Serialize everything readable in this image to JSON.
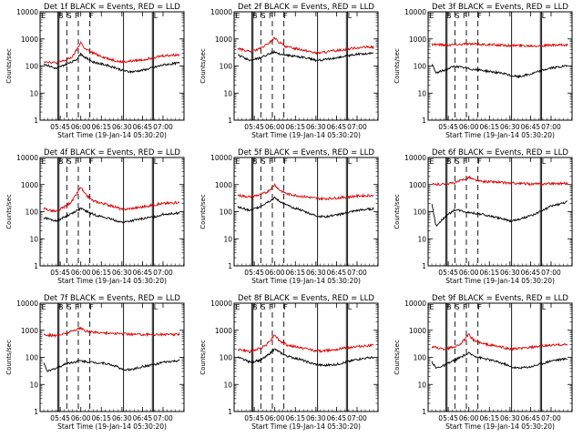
{
  "colors": {
    "events": "#000000",
    "lld": "#dd0000",
    "axes": "#000000"
  },
  "y_axis": {
    "label": "Counts/sec",
    "ticks": [
      "1",
      "10",
      "100",
      "1000",
      "10000"
    ],
    "ylim": [
      1,
      10000
    ],
    "scale": "log"
  },
  "x_axis": {
    "ticks": [
      "05:45",
      "06:00",
      "06:15",
      "06:30",
      "06:45",
      "07:00"
    ],
    "xlabel": "Start Time (19-Jan-14 05:30:20)"
  },
  "chart_data": [
    {
      "type": "line",
      "title": "Det 1f BLACK = Events, RED = LLD",
      "flags": [
        "E",
        "B",
        "S",
        "F",
        "F",
        "L"
      ],
      "events": [
        [
          5.55,
          120
        ],
        [
          5.7,
          80
        ],
        [
          5.83,
          120
        ],
        [
          5.9,
          140
        ],
        [
          5.95,
          180
        ],
        [
          6.0,
          280
        ],
        [
          6.05,
          210
        ],
        [
          6.15,
          140
        ],
        [
          6.3,
          110
        ],
        [
          6.45,
          80
        ],
        [
          6.5,
          70
        ],
        [
          6.6,
          60
        ],
        [
          6.75,
          70
        ],
        [
          6.9,
          90
        ],
        [
          7.0,
          110
        ],
        [
          7.2,
          130
        ]
      ],
      "lld": [
        [
          5.55,
          150
        ],
        [
          5.7,
          130
        ],
        [
          5.83,
          170
        ],
        [
          5.9,
          220
        ],
        [
          5.95,
          400
        ],
        [
          6.0,
          750
        ],
        [
          6.05,
          430
        ],
        [
          6.15,
          300
        ],
        [
          6.3,
          200
        ],
        [
          6.45,
          150
        ],
        [
          6.5,
          140
        ],
        [
          6.6,
          150
        ],
        [
          6.75,
          170
        ],
        [
          6.9,
          210
        ],
        [
          7.0,
          240
        ],
        [
          7.2,
          260
        ]
      ]
    },
    {
      "type": "line",
      "title": "Det 2f BLACK = Events, RED = LLD",
      "flags": [
        "E",
        "B",
        "S",
        "F",
        "F",
        "L"
      ],
      "events": [
        [
          5.55,
          250
        ],
        [
          5.7,
          160
        ],
        [
          5.83,
          200
        ],
        [
          5.9,
          260
        ],
        [
          5.95,
          300
        ],
        [
          6.0,
          330
        ],
        [
          6.05,
          280
        ],
        [
          6.15,
          250
        ],
        [
          6.3,
          220
        ],
        [
          6.45,
          180
        ],
        [
          6.5,
          160
        ],
        [
          6.6,
          170
        ],
        [
          6.75,
          200
        ],
        [
          6.9,
          240
        ],
        [
          7.0,
          270
        ],
        [
          7.2,
          300
        ]
      ],
      "lld": [
        [
          5.55,
          450
        ],
        [
          5.7,
          330
        ],
        [
          5.83,
          450
        ],
        [
          5.9,
          600
        ],
        [
          5.95,
          800
        ],
        [
          6.0,
          1100
        ],
        [
          6.05,
          750
        ],
        [
          6.15,
          500
        ],
        [
          6.3,
          420
        ],
        [
          6.45,
          330
        ],
        [
          6.5,
          300
        ],
        [
          6.6,
          320
        ],
        [
          6.75,
          370
        ],
        [
          6.9,
          430
        ],
        [
          7.0,
          480
        ],
        [
          7.2,
          500
        ]
      ]
    },
    {
      "type": "line",
      "title": "Det 3f BLACK = Events, RED = LLD",
      "flags": [
        "E",
        "B",
        "S",
        "F",
        "F",
        "L"
      ],
      "events": [
        [
          5.55,
          120
        ],
        [
          5.6,
          55
        ],
        [
          5.7,
          70
        ],
        [
          5.83,
          100
        ],
        [
          5.9,
          90
        ],
        [
          5.95,
          85
        ],
        [
          6.0,
          80
        ],
        [
          6.05,
          75
        ],
        [
          6.15,
          70
        ],
        [
          6.3,
          60
        ],
        [
          6.45,
          50
        ],
        [
          6.5,
          45
        ],
        [
          6.6,
          40
        ],
        [
          6.75,
          50
        ],
        [
          6.9,
          70
        ],
        [
          7.0,
          85
        ],
        [
          7.2,
          100
        ]
      ],
      "lld": [
        [
          5.55,
          650
        ],
        [
          5.7,
          600
        ],
        [
          5.83,
          620
        ],
        [
          5.9,
          640
        ],
        [
          5.95,
          660
        ],
        [
          6.0,
          650
        ],
        [
          6.05,
          640
        ],
        [
          6.15,
          630
        ],
        [
          6.3,
          600
        ],
        [
          6.45,
          580
        ],
        [
          6.6,
          570
        ],
        [
          6.75,
          560
        ],
        [
          6.9,
          570
        ],
        [
          7.0,
          580
        ],
        [
          7.2,
          600
        ]
      ]
    },
    {
      "type": "line",
      "title": "Det 4f BLACK = Events, RED = LLD",
      "flags": [
        "E",
        "B",
        "S",
        "F",
        "F",
        "L"
      ],
      "events": [
        [
          5.55,
          60
        ],
        [
          5.7,
          45
        ],
        [
          5.83,
          70
        ],
        [
          5.9,
          90
        ],
        [
          5.95,
          110
        ],
        [
          6.0,
          130
        ],
        [
          6.05,
          110
        ],
        [
          6.15,
          80
        ],
        [
          6.3,
          60
        ],
        [
          6.45,
          45
        ],
        [
          6.5,
          40
        ],
        [
          6.6,
          45
        ],
        [
          6.75,
          55
        ],
        [
          6.9,
          65
        ],
        [
          7.0,
          80
        ],
        [
          7.2,
          90
        ]
      ],
      "lld": [
        [
          5.55,
          130
        ],
        [
          5.7,
          100
        ],
        [
          5.83,
          170
        ],
        [
          5.9,
          260
        ],
        [
          5.95,
          450
        ],
        [
          6.0,
          800
        ],
        [
          6.05,
          450
        ],
        [
          6.15,
          250
        ],
        [
          6.3,
          190
        ],
        [
          6.45,
          140
        ],
        [
          6.5,
          120
        ],
        [
          6.6,
          130
        ],
        [
          6.75,
          150
        ],
        [
          6.9,
          180
        ],
        [
          7.0,
          200
        ],
        [
          7.2,
          220
        ]
      ]
    },
    {
      "type": "line",
      "title": "Det 5f BLACK = Events, RED = LLD",
      "flags": [
        "E",
        "B",
        "S",
        "F",
        "F",
        "L"
      ],
      "events": [
        [
          5.55,
          150
        ],
        [
          5.7,
          110
        ],
        [
          5.83,
          160
        ],
        [
          5.9,
          220
        ],
        [
          5.95,
          260
        ],
        [
          6.0,
          320
        ],
        [
          6.05,
          250
        ],
        [
          6.15,
          170
        ],
        [
          6.3,
          120
        ],
        [
          6.45,
          80
        ],
        [
          6.5,
          70
        ],
        [
          6.6,
          65
        ],
        [
          6.75,
          75
        ],
        [
          6.9,
          95
        ],
        [
          7.0,
          110
        ],
        [
          7.2,
          130
        ]
      ],
      "lld": [
        [
          5.55,
          400
        ],
        [
          5.7,
          350
        ],
        [
          5.83,
          430
        ],
        [
          5.9,
          520
        ],
        [
          5.95,
          700
        ],
        [
          6.0,
          1000
        ],
        [
          6.05,
          650
        ],
        [
          6.15,
          450
        ],
        [
          6.3,
          380
        ],
        [
          6.45,
          330
        ],
        [
          6.5,
          310
        ],
        [
          6.6,
          300
        ],
        [
          6.75,
          320
        ],
        [
          6.9,
          350
        ],
        [
          7.0,
          380
        ],
        [
          7.2,
          400
        ]
      ]
    },
    {
      "type": "line",
      "title": "Det 6f BLACK = Events, RED = LLD",
      "flags": [
        "E",
        "B",
        "S",
        "F",
        "F",
        "L"
      ],
      "events": [
        [
          5.55,
          200
        ],
        [
          5.6,
          30
        ],
        [
          5.7,
          60
        ],
        [
          5.83,
          120
        ],
        [
          5.9,
          110
        ],
        [
          5.95,
          100
        ],
        [
          6.0,
          95
        ],
        [
          6.05,
          90
        ],
        [
          6.15,
          80
        ],
        [
          6.3,
          65
        ],
        [
          6.45,
          50
        ],
        [
          6.5,
          45
        ],
        [
          6.6,
          50
        ],
        [
          6.75,
          70
        ],
        [
          6.9,
          110
        ],
        [
          7.0,
          160
        ],
        [
          7.2,
          230
        ]
      ],
      "lld": [
        [
          5.55,
          1000
        ],
        [
          5.7,
          1050
        ],
        [
          5.83,
          1150
        ],
        [
          5.9,
          1400
        ],
        [
          5.95,
          1600
        ],
        [
          6.0,
          1900
        ],
        [
          6.05,
          1550
        ],
        [
          6.15,
          1300
        ],
        [
          6.3,
          1250
        ],
        [
          6.45,
          1150
        ],
        [
          6.6,
          1100
        ],
        [
          6.75,
          1050
        ],
        [
          6.9,
          1050
        ],
        [
          7.0,
          1100
        ],
        [
          7.2,
          1100
        ]
      ]
    },
    {
      "type": "line",
      "title": "Det 7f BLACK = Events, RED = LLD",
      "flags": [
        "E",
        "B",
        "S",
        "F",
        "F",
        "L"
      ],
      "events": [
        [
          5.55,
          60
        ],
        [
          5.6,
          30
        ],
        [
          5.7,
          40
        ],
        [
          5.83,
          60
        ],
        [
          5.9,
          65
        ],
        [
          5.95,
          70
        ],
        [
          6.0,
          75
        ],
        [
          6.05,
          70
        ],
        [
          6.15,
          65
        ],
        [
          6.3,
          60
        ],
        [
          6.45,
          45
        ],
        [
          6.5,
          35
        ],
        [
          6.6,
          35
        ],
        [
          6.75,
          45
        ],
        [
          6.9,
          55
        ],
        [
          7.0,
          65
        ],
        [
          7.2,
          75
        ]
      ],
      "lld": [
        [
          5.55,
          700
        ],
        [
          5.7,
          620
        ],
        [
          5.83,
          800
        ],
        [
          5.9,
          950
        ],
        [
          5.95,
          1100
        ],
        [
          6.0,
          1200
        ],
        [
          6.05,
          950
        ],
        [
          6.15,
          850
        ],
        [
          6.3,
          800
        ],
        [
          6.45,
          750
        ],
        [
          6.6,
          720
        ],
        [
          6.75,
          700
        ],
        [
          6.9,
          700
        ],
        [
          7.0,
          700
        ],
        [
          7.2,
          700
        ]
      ]
    },
    {
      "type": "line",
      "title": "Det 8f BLACK = Events, RED = LLD",
      "flags": [
        "E",
        "B",
        "S",
        "F",
        "F",
        "L"
      ],
      "events": [
        [
          5.55,
          100
        ],
        [
          5.7,
          65
        ],
        [
          5.83,
          80
        ],
        [
          5.9,
          110
        ],
        [
          5.95,
          150
        ],
        [
          6.0,
          200
        ],
        [
          6.05,
          160
        ],
        [
          6.15,
          110
        ],
        [
          6.3,
          85
        ],
        [
          6.45,
          60
        ],
        [
          6.5,
          55
        ],
        [
          6.6,
          50
        ],
        [
          6.75,
          55
        ],
        [
          6.9,
          70
        ],
        [
          7.0,
          85
        ],
        [
          7.2,
          100
        ]
      ],
      "lld": [
        [
          5.55,
          200
        ],
        [
          5.7,
          160
        ],
        [
          5.83,
          220
        ],
        [
          5.9,
          300
        ],
        [
          5.95,
          450
        ],
        [
          6.0,
          700
        ],
        [
          6.05,
          420
        ],
        [
          6.15,
          280
        ],
        [
          6.3,
          230
        ],
        [
          6.45,
          190
        ],
        [
          6.5,
          170
        ],
        [
          6.6,
          175
        ],
        [
          6.75,
          200
        ],
        [
          6.9,
          230
        ],
        [
          7.0,
          250
        ],
        [
          7.2,
          280
        ]
      ]
    },
    {
      "type": "line",
      "title": "Det 9f BLACK = Events, RED = LLD",
      "flags": [
        "E",
        "B",
        "S",
        "F",
        "F",
        "L"
      ],
      "events": [
        [
          5.55,
          70
        ],
        [
          5.6,
          40
        ],
        [
          5.7,
          50
        ],
        [
          5.83,
          80
        ],
        [
          5.9,
          100
        ],
        [
          5.95,
          120
        ],
        [
          6.0,
          140
        ],
        [
          6.05,
          120
        ],
        [
          6.15,
          95
        ],
        [
          6.3,
          75
        ],
        [
          6.45,
          55
        ],
        [
          6.5,
          45
        ],
        [
          6.6,
          40
        ],
        [
          6.75,
          45
        ],
        [
          6.9,
          60
        ],
        [
          7.0,
          75
        ],
        [
          7.2,
          90
        ]
      ],
      "lld": [
        [
          5.55,
          250
        ],
        [
          5.7,
          200
        ],
        [
          5.83,
          250
        ],
        [
          5.9,
          320
        ],
        [
          5.95,
          450
        ],
        [
          6.0,
          700
        ],
        [
          6.05,
          450
        ],
        [
          6.15,
          330
        ],
        [
          6.3,
          270
        ],
        [
          6.45,
          220
        ],
        [
          6.5,
          200
        ],
        [
          6.6,
          210
        ],
        [
          6.75,
          230
        ],
        [
          6.9,
          260
        ],
        [
          7.0,
          280
        ],
        [
          7.2,
          300
        ]
      ]
    }
  ]
}
